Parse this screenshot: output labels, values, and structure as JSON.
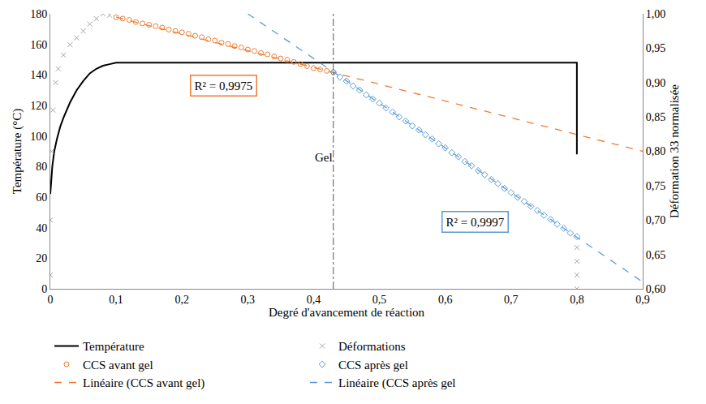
{
  "chart_data": {
    "type": "scatter",
    "x_label": "Degré d'avancement de réaction",
    "y_label": "Température (°C)",
    "y2_label": "Déformation 33 normalisée",
    "xlim": [
      0,
      0.9
    ],
    "xticks": [
      0,
      {
        "value": 0.1,
        "label": "0,1"
      },
      {
        "value": 0.2,
        "label": "0,2"
      },
      {
        "value": 0.3,
        "label": "0,3"
      },
      {
        "value": 0.4,
        "label": "0,4"
      },
      {
        "value": 0.5,
        "label": "0,5"
      },
      {
        "value": 0.6,
        "label": "0,6"
      },
      {
        "value": 0.7,
        "label": "0,7"
      },
      {
        "value": 0.8,
        "label": "0,8"
      },
      {
        "value": 0.9,
        "label": "0,9"
      }
    ],
    "ylim": [
      0,
      180
    ],
    "yticks": [
      0,
      20,
      40,
      60,
      80,
      100,
      120,
      140,
      160,
      180
    ],
    "y2lim": [
      0.6,
      1.0
    ],
    "y2ticks": [
      {
        "value": 0.6,
        "label": "0,60"
      },
      {
        "value": 0.65,
        "label": "0,65"
      },
      {
        "value": 0.7,
        "label": "0,70"
      },
      {
        "value": 0.75,
        "label": "0,75"
      },
      {
        "value": 0.8,
        "label": "0,80"
      },
      {
        "value": 0.85,
        "label": "0,85"
      },
      {
        "value": 0.9,
        "label": "0,90"
      },
      {
        "value": 0.95,
        "label": "0,95"
      },
      {
        "value": 1.0,
        "label": "1,00"
      }
    ],
    "grid": false,
    "legend": "bottom",
    "series": [
      {
        "name": "Température",
        "type": "line",
        "line_style": "solid",
        "color": "#000000",
        "axis": "y",
        "x": [
          0,
          0.003,
          0.006,
          0.01,
          0.015,
          0.02,
          0.03,
          0.04,
          0.05,
          0.06,
          0.07,
          0.08,
          0.09,
          0.1,
          0.2,
          0.3,
          0.4,
          0.5,
          0.6,
          0.7,
          0.8,
          0.8
        ],
        "values": [
          62,
          80,
          90,
          98,
          106,
          112,
          122,
          130,
          136,
          141,
          144,
          146,
          147,
          148,
          148,
          148,
          148,
          148,
          148,
          148,
          148,
          88
        ]
      },
      {
        "name": "Déformations",
        "type": "scatter",
        "marker": "x-thin-open",
        "color": "#A5A5A5",
        "axis": "y2",
        "x": [
          0,
          0,
          0.002,
          0.004,
          0.008,
          0.012,
          0.02,
          0.03,
          0.04,
          0.05,
          0.06,
          0.07,
          0.08,
          0.09,
          0.8,
          0.8,
          0.8,
          0.8
        ],
        "values": [
          0.62,
          0.7,
          0.8,
          0.86,
          0.9,
          0.92,
          0.94,
          0.955,
          0.965,
          0.975,
          0.985,
          0.993,
          1.0,
          0.998,
          0.66,
          0.64,
          0.62,
          0.6
        ]
      },
      {
        "name": "CCS avant gel",
        "type": "scatter",
        "marker": "circle-open",
        "color": "#ED7D31",
        "axis": "y2",
        "x": [
          0.1,
          0.11,
          0.12,
          0.13,
          0.14,
          0.15,
          0.16,
          0.17,
          0.18,
          0.19,
          0.2,
          0.21,
          0.22,
          0.23,
          0.24,
          0.25,
          0.26,
          0.27,
          0.28,
          0.29,
          0.3,
          0.31,
          0.32,
          0.33,
          0.34,
          0.35,
          0.36,
          0.37,
          0.38,
          0.39,
          0.4,
          0.41,
          0.42,
          0.43
        ],
        "values": [
          0.995,
          0.993,
          0.991,
          0.988,
          0.986,
          0.984,
          0.982,
          0.98,
          0.977,
          0.975,
          0.973,
          0.971,
          0.968,
          0.966,
          0.963,
          0.961,
          0.958,
          0.956,
          0.953,
          0.951,
          0.948,
          0.946,
          0.943,
          0.941,
          0.938,
          0.935,
          0.933,
          0.93,
          0.927,
          0.924,
          0.921,
          0.919,
          0.917,
          0.915
        ]
      },
      {
        "name": "CCS après gel",
        "type": "scatter",
        "marker": "diamond-open",
        "color": "#5B9BD5",
        "axis": "y2",
        "x": [
          0.43,
          0.44,
          0.45,
          0.46,
          0.47,
          0.48,
          0.49,
          0.5,
          0.51,
          0.52,
          0.53,
          0.54,
          0.55,
          0.56,
          0.57,
          0.58,
          0.59,
          0.6,
          0.61,
          0.62,
          0.63,
          0.64,
          0.65,
          0.66,
          0.67,
          0.68,
          0.69,
          0.7,
          0.71,
          0.72,
          0.73,
          0.74,
          0.75,
          0.76,
          0.77,
          0.78,
          0.79,
          0.8
        ],
        "values": [
          0.915,
          0.908,
          0.902,
          0.895,
          0.889,
          0.882,
          0.876,
          0.87,
          0.863,
          0.857,
          0.85,
          0.844,
          0.837,
          0.831,
          0.824,
          0.818,
          0.811,
          0.805,
          0.798,
          0.792,
          0.785,
          0.779,
          0.772,
          0.766,
          0.759,
          0.753,
          0.746,
          0.74,
          0.733,
          0.727,
          0.72,
          0.714,
          0.707,
          0.701,
          0.694,
          0.688,
          0.681,
          0.676
        ]
      },
      {
        "name": "Linéaire (CCS avant gel)",
        "type": "line",
        "line_style": "dash",
        "color": "#ED7D31",
        "axis": "y2",
        "x": [
          0.1,
          0.9
        ],
        "values": [
          0.995,
          0.8
        ]
      },
      {
        "name": "Linéaire (CCS après gel",
        "type": "line",
        "line_style": "dash",
        "color": "#5B9BD5",
        "axis": "y2",
        "x": [
          0.3,
          0.9
        ],
        "values": [
          1.0,
          0.61
        ]
      }
    ],
    "annotations": [
      {
        "text": "R² = 0,9975",
        "x": 0.263,
        "y": 133,
        "color": "#ED7D31"
      },
      {
        "text": "R² = 0,9997",
        "x": 0.646,
        "y": 44,
        "color": "#5B9BD5"
      },
      {
        "text": "Gel",
        "x": 0.415,
        "y": 86
      }
    ],
    "vlines": [
      {
        "x": 0.43,
        "line_style": "dashdot"
      }
    ]
  }
}
